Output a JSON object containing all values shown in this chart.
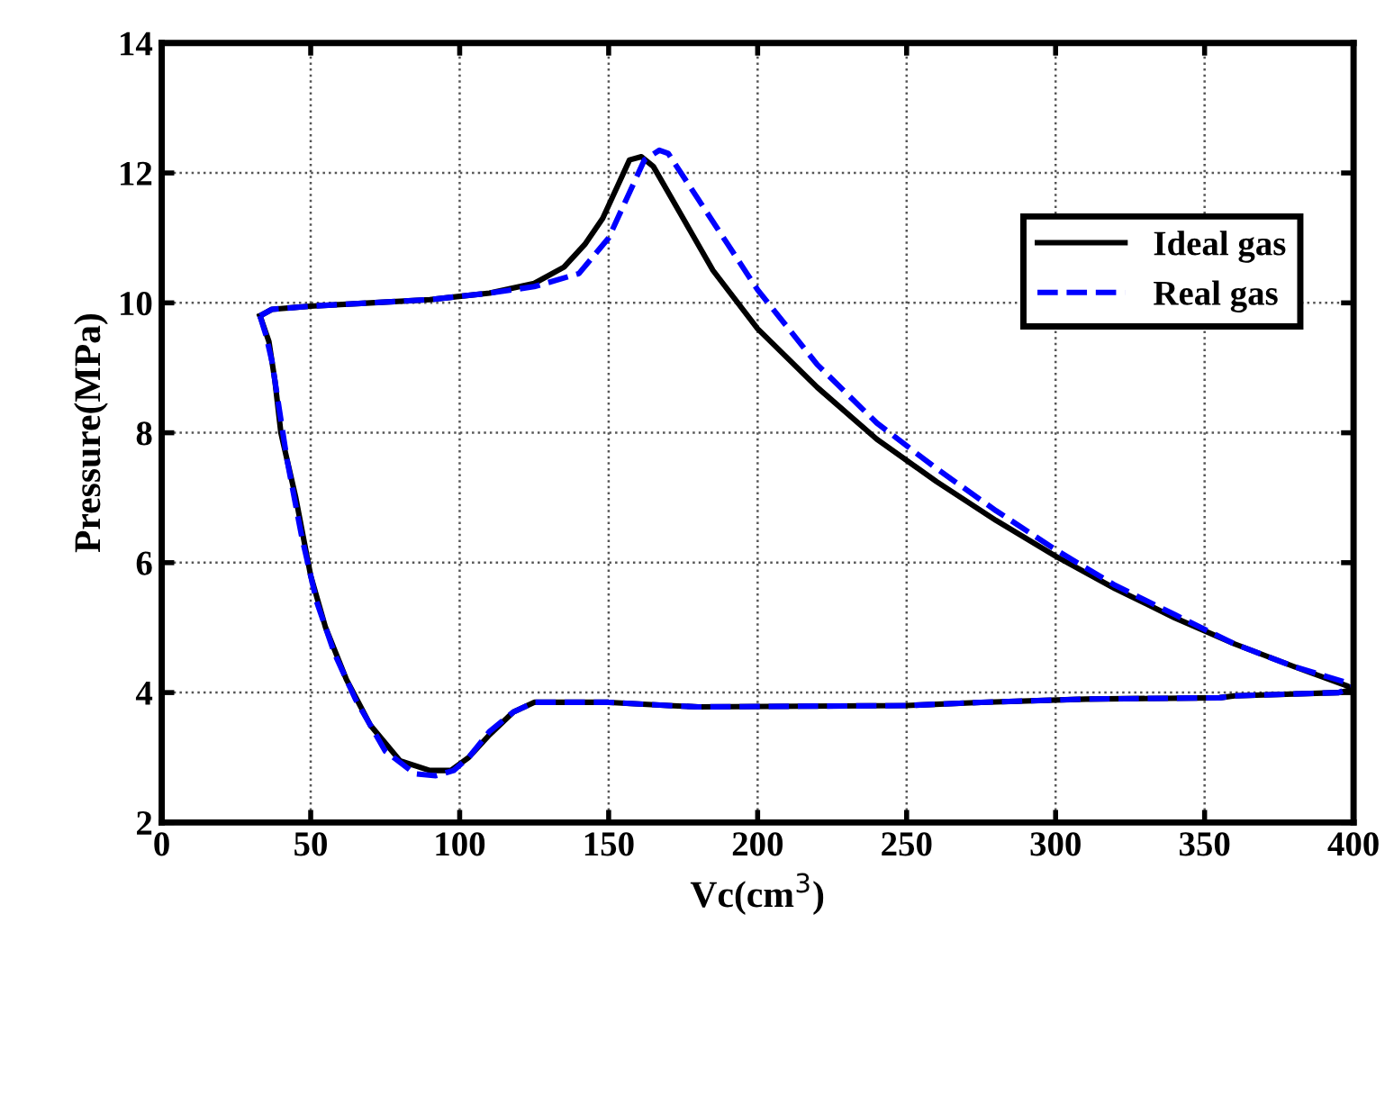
{
  "chart_data": {
    "type": "line",
    "xlabel": "Vc(cm$^{3}$)",
    "ylabel": "Pressure(MPa)",
    "xlim": [
      0,
      400
    ],
    "ylim": [
      2,
      14
    ],
    "xticks": [
      0,
      50,
      100,
      150,
      200,
      250,
      300,
      350,
      400
    ],
    "yticks": [
      2,
      4,
      6,
      8,
      10,
      12,
      14
    ],
    "grid": true,
    "legend": "top right",
    "series": [
      {
        "name": "Ideal gas",
        "color": "#000000",
        "line_style": "solid",
        "x": [
          33,
          37,
          50,
          70,
          90,
          110,
          125,
          135,
          142,
          148,
          153,
          157,
          161,
          165,
          175,
          185,
          200,
          220,
          240,
          260,
          280,
          300,
          320,
          340,
          360,
          380,
          398,
          400
        ],
        "values": [
          9.8,
          9.9,
          9.95,
          10.0,
          10.05,
          10.15,
          10.3,
          10.55,
          10.9,
          11.3,
          11.8,
          12.2,
          12.25,
          12.1,
          11.3,
          10.5,
          9.6,
          8.7,
          7.9,
          7.25,
          6.65,
          6.1,
          5.6,
          5.15,
          4.75,
          4.4,
          4.1,
          4.05
        ]
      },
      {
        "color": "#000000",
        "line_style": "solid",
        "x": [
          33,
          36,
          38,
          40,
          45,
          50,
          55,
          62,
          70,
          80,
          90,
          97,
          103,
          110,
          118,
          125,
          150,
          170,
          180,
          250,
          275,
          310,
          355,
          360,
          395,
          400
        ],
        "values": [
          9.8,
          9.4,
          8.8,
          8.0,
          7.0,
          5.8,
          5.0,
          4.2,
          3.5,
          2.95,
          2.8,
          2.8,
          3.0,
          3.35,
          3.7,
          3.85,
          3.85,
          3.8,
          3.78,
          3.8,
          3.85,
          3.9,
          3.92,
          3.95,
          4.0,
          4.05
        ]
      },
      {
        "name": "Real gas",
        "color": "#0000ff",
        "line_style": "dashed",
        "x": [
          33,
          37,
          50,
          70,
          90,
          110,
          125,
          140,
          150,
          157,
          162,
          167,
          170,
          180,
          190,
          200,
          220,
          240,
          260,
          280,
          300,
          320,
          340,
          360,
          380,
          398,
          400
        ],
        "values": [
          9.8,
          9.9,
          9.95,
          10.0,
          10.05,
          10.15,
          10.25,
          10.45,
          11.0,
          11.7,
          12.2,
          12.35,
          12.3,
          11.6,
          10.9,
          10.2,
          9.05,
          8.15,
          7.45,
          6.8,
          6.2,
          5.65,
          5.2,
          4.75,
          4.4,
          4.15,
          4.1
        ]
      },
      {
        "color": "#0000ff",
        "line_style": "dashed",
        "x": [
          33,
          35,
          37,
          39,
          42,
          47,
          52,
          58,
          65,
          75,
          85,
          92,
          98,
          103,
          110,
          118,
          125,
          150,
          170,
          180,
          250,
          275,
          310,
          355,
          360,
          395,
          400
        ],
        "values": [
          9.8,
          9.5,
          9.1,
          8.5,
          7.6,
          6.4,
          5.4,
          4.6,
          3.9,
          3.1,
          2.75,
          2.72,
          2.8,
          3.0,
          3.4,
          3.7,
          3.85,
          3.85,
          3.8,
          3.78,
          3.8,
          3.85,
          3.9,
          3.92,
          3.95,
          4.0,
          4.1
        ]
      }
    ]
  }
}
